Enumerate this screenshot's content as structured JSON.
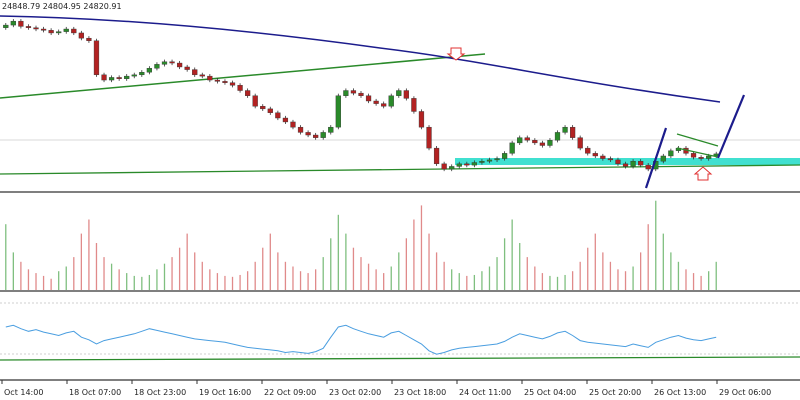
{
  "ohlc_readout": "24848.79 24804.95 24820.91",
  "colors": {
    "bull": "#2a8a2a",
    "bear": "#b22222",
    "ma": "#1c1c8c",
    "trend": "#2a8a2a",
    "zone": "#40e0d0",
    "volume_bull": "#7fbf7f",
    "volume_bear": "#e08a8a",
    "rsi": "#4a9ee0",
    "arrow": "#e03030",
    "impulse": "#1c1c8c"
  },
  "chart_data": [
    {
      "type": "candlestick",
      "title": "",
      "x_ticks": [
        "Oct 14:00",
        "18 Oct 07:00",
        "18 Oct 23:00",
        "19 Oct 16:00",
        "22 Oct 09:00",
        "23 Oct 02:00",
        "23 Oct 18:00",
        "24 Oct 11:00",
        "25 Oct 04:00",
        "25 Oct 20:00",
        "26 Oct 13:00",
        "29 Oct 06:00"
      ],
      "closes": [
        24910,
        24925,
        24905,
        24900,
        24895,
        24890,
        24880,
        24885,
        24895,
        24880,
        24860,
        24850,
        24720,
        24700,
        24710,
        24705,
        24715,
        24720,
        24730,
        24745,
        24760,
        24770,
        24765,
        24750,
        24740,
        24720,
        24715,
        24700,
        24695,
        24690,
        24680,
        24660,
        24640,
        24600,
        24590,
        24575,
        24555,
        24540,
        24520,
        24500,
        24490,
        24480,
        24500,
        24520,
        24640,
        24660,
        24650,
        24640,
        24620,
        24610,
        24600,
        24640,
        24660,
        24630,
        24580,
        24520,
        24440,
        24380,
        24360,
        24370,
        24380,
        24375,
        24385,
        24390,
        24395,
        24400,
        24420,
        24460,
        24480,
        24470,
        24460,
        24450,
        24470,
        24500,
        24520,
        24480,
        24440,
        24420,
        24410,
        24400,
        24395,
        24380,
        24370,
        24390,
        24375,
        24360,
        24390,
        24410,
        24430,
        24440,
        24420,
        24405,
        24400,
        24410,
        24418
      ],
      "ylim": [
        24280,
        24960
      ]
    },
    {
      "type": "bar",
      "title": "",
      "values": [
        70,
        40,
        30,
        22,
        18,
        15,
        12,
        20,
        25,
        35,
        60,
        75,
        50,
        35,
        28,
        22,
        18,
        15,
        14,
        16,
        22,
        28,
        35,
        45,
        60,
        40,
        30,
        22,
        18,
        15,
        14,
        16,
        20,
        30,
        45,
        60,
        40,
        30,
        25,
        20,
        18,
        22,
        35,
        55,
        80,
        60,
        45,
        35,
        28,
        22,
        18,
        25,
        40,
        55,
        75,
        90,
        60,
        40,
        30,
        22,
        18,
        15,
        16,
        20,
        25,
        35,
        55,
        75,
        50,
        35,
        25,
        18,
        15,
        14,
        16,
        20,
        30,
        45,
        60,
        40,
        30,
        22,
        20,
        25,
        40,
        70,
        95,
        60,
        40,
        30,
        22,
        18,
        15,
        20,
        30
      ],
      "ylim": [
        0,
        100
      ]
    },
    {
      "type": "line",
      "title": "",
      "values": [
        60,
        62,
        58,
        55,
        57,
        54,
        52,
        50,
        53,
        55,
        48,
        45,
        40,
        44,
        46,
        48,
        50,
        52,
        55,
        58,
        56,
        54,
        52,
        50,
        48,
        46,
        45,
        44,
        43,
        42,
        40,
        38,
        36,
        35,
        34,
        33,
        32,
        30,
        31,
        30,
        29,
        31,
        35,
        48,
        60,
        62,
        58,
        55,
        52,
        50,
        48,
        53,
        55,
        50,
        45,
        40,
        32,
        28,
        30,
        33,
        35,
        36,
        37,
        38,
        39,
        40,
        43,
        48,
        52,
        50,
        48,
        46,
        49,
        53,
        55,
        50,
        44,
        42,
        41,
        40,
        39,
        38,
        37,
        40,
        38,
        36,
        42,
        45,
        48,
        50,
        47,
        45,
        44,
        46,
        48
      ],
      "ylim": [
        0,
        100
      ]
    }
  ]
}
